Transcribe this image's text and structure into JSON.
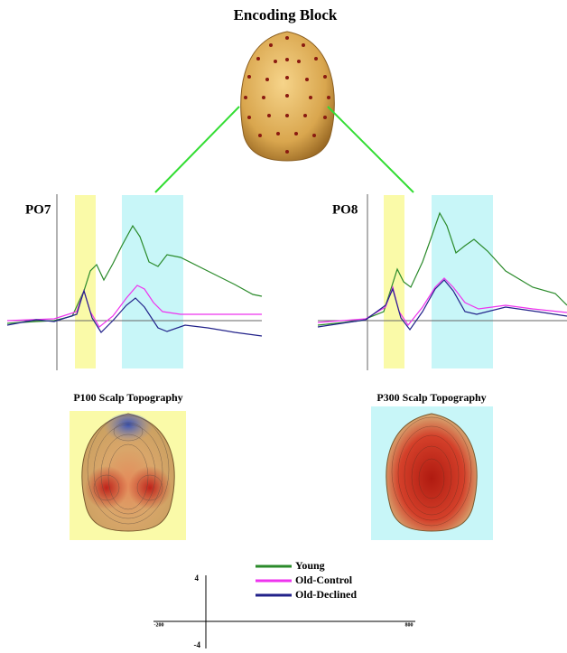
{
  "header": {
    "title": "Encoding Block"
  },
  "plots": [
    {
      "label": "PO7"
    },
    {
      "label": "PO8"
    }
  ],
  "topographies": [
    {
      "title": "P100 Scalp Topography"
    },
    {
      "title": "P300 Scalp Topography"
    }
  ],
  "legend": [
    {
      "name": "Young"
    },
    {
      "name": "Old-Control"
    },
    {
      "name": "Old-Declined"
    }
  ],
  "scale": {
    "top": "4",
    "bottom": "-4",
    "left": "-200",
    "right": "800"
  }
}
